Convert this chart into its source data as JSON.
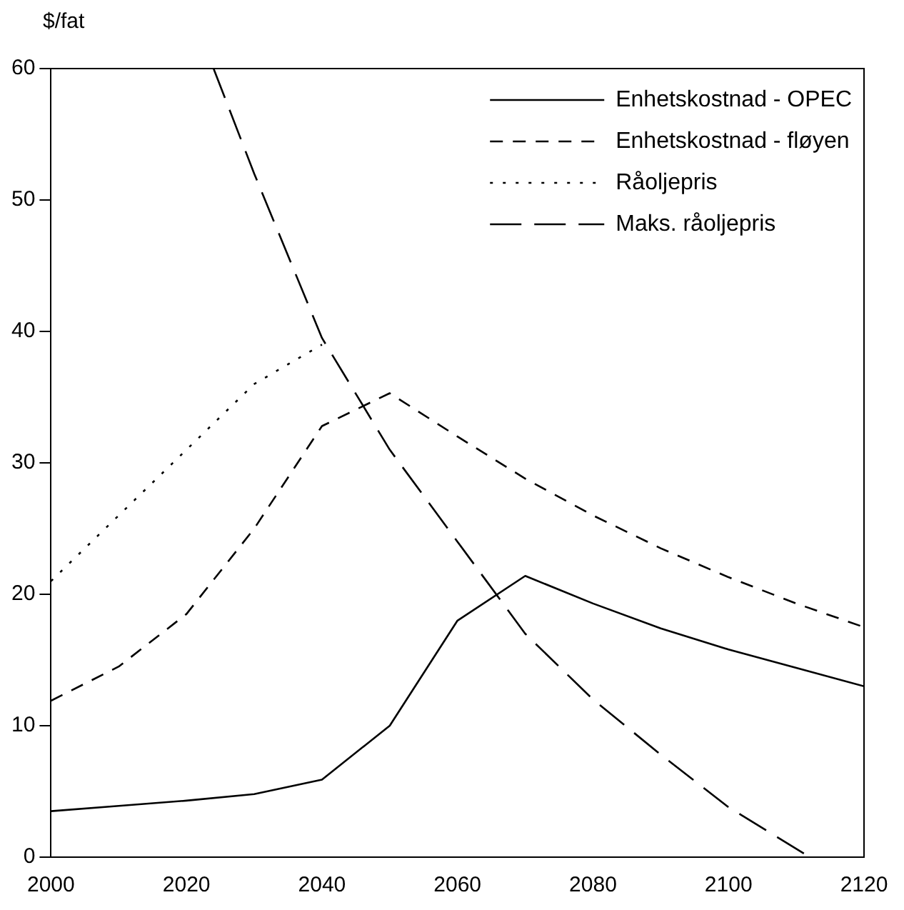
{
  "chart_data": {
    "type": "line",
    "ylabel": "$/fat",
    "xlim": [
      2000,
      2120
    ],
    "xticks": [
      2000,
      2020,
      2040,
      2060,
      2080,
      2100,
      2120
    ],
    "ylim": [
      0,
      60
    ],
    "yticks": [
      0,
      10,
      20,
      30,
      40,
      50,
      60
    ],
    "grid": false,
    "legend": "top right",
    "marker": "none",
    "series": [
      {
        "name": "Enhetskostnad - OPEC",
        "color": "#000000",
        "line_style": "solid",
        "x": [
          2000,
          2010,
          2020,
          2030,
          2040,
          2050,
          2060,
          2070,
          2080,
          2090,
          2100,
          2110,
          2120
        ],
        "values": [
          3.5,
          3.9,
          4.3,
          4.8,
          5.9,
          10,
          18,
          21.4,
          19.3,
          17.4,
          15.8,
          14.4,
          13
        ]
      },
      {
        "name": "Enhetskostnad - fløyen",
        "color": "#000000",
        "line_style": "dashed",
        "x": [
          2000,
          2010,
          2020,
          2030,
          2040,
          2050,
          2060,
          2070,
          2080,
          2090,
          2100,
          2110,
          2120
        ],
        "values": [
          11.9,
          14.5,
          18.5,
          25,
          32.8,
          35.3,
          32,
          28.8,
          26,
          23.5,
          21.3,
          19.3,
          17.5
        ]
      },
      {
        "name": "Råoljepris",
        "color": "#000000",
        "line_style": "dotted",
        "x": [
          2000,
          2010,
          2020,
          2030,
          2040
        ],
        "values": [
          21,
          26,
          31,
          36,
          39
        ]
      },
      {
        "name": "Maks. råoljepris",
        "color": "#000000",
        "line_style": "longdash",
        "x": [
          2024,
          2030,
          2040,
          2050,
          2060,
          2070,
          2080,
          2090,
          2100,
          2112
        ],
        "values": [
          60,
          52,
          39.5,
          31,
          24,
          17,
          12,
          7.8,
          3.8,
          0
        ]
      }
    ]
  }
}
